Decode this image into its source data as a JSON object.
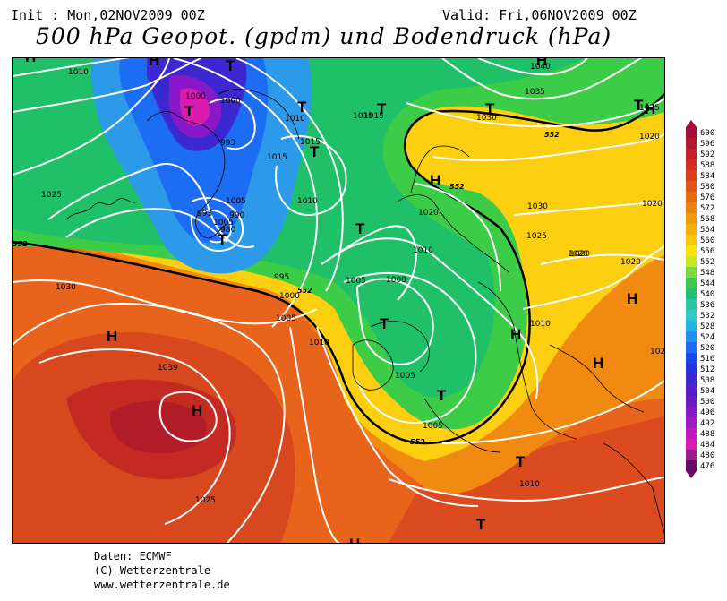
{
  "header": {
    "init": "Init : Mon,02NOV2009 00Z",
    "valid": "Valid: Fri,06NOV2009 00Z",
    "title": "500 hPa Geopot. (gpdm) und Bodendruck (hPa)"
  },
  "footer": {
    "source": "Daten: ECMWF",
    "copyright": "(C) Wetterzentrale",
    "url": "www.wetterzentrale.de"
  },
  "legend": {
    "ticks": [
      "600",
      "596",
      "592",
      "588",
      "584",
      "580",
      "576",
      "572",
      "568",
      "564",
      "560",
      "556",
      "552",
      "548",
      "544",
      "540",
      "536",
      "532",
      "528",
      "524",
      "520",
      "516",
      "512",
      "508",
      "504",
      "500",
      "496",
      "492",
      "488",
      "484",
      "480",
      "476"
    ],
    "colors": [
      "#a01038",
      "#b4182e",
      "#c8202a",
      "#d22e22",
      "#dc3e1c",
      "#e45418",
      "#ec6a14",
      "#f08010",
      "#f4980c",
      "#f8b008",
      "#fcc808",
      "#fce00c",
      "#c8e820",
      "#7cd83c",
      "#3cc848",
      "#20c070",
      "#28c8a0",
      "#30c8c8",
      "#20b4e0",
      "#2090f0",
      "#1c6cf4",
      "#1848e8",
      "#2434d8",
      "#3c28d0",
      "#5420c8",
      "#6c1cc4",
      "#8818c8",
      "#a018c8",
      "#c018c0",
      "#d81cb0",
      "#9c1c90",
      "#680c68"
    ]
  },
  "map": {
    "pressure_labels": [
      "1010",
      "1000",
      "1000",
      "1010",
      "1015",
      "1015",
      "1015",
      "993",
      "1005",
      "993",
      "990",
      "980",
      "1005",
      "1010",
      "1025",
      "1030",
      "995",
      "1000",
      "1005",
      "1010",
      "1005",
      "1000",
      "1010",
      "1020",
      "1015",
      "1030",
      "1035",
      "1040",
      "1025",
      "1020",
      "1030",
      "1025",
      "1020",
      "1020",
      "1010",
      "1005",
      "1005",
      "1039",
      "1025",
      "1010",
      "1020",
      "1020",
      "1020"
    ],
    "system_markers": [
      "H",
      "T",
      "T",
      "T",
      "T",
      "T",
      "T",
      "T",
      "T",
      "H",
      "H",
      "H",
      "H",
      "T",
      "T",
      "H",
      "H",
      "H",
      "T",
      "H",
      "T",
      "T",
      "H",
      "H"
    ],
    "contour_labels_552": [
      "552",
      "552",
      "552",
      "552",
      "552"
    ]
  }
}
